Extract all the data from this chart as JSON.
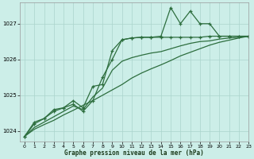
{
  "title": "Graphe pression niveau de la mer (hPa)",
  "bg_color": "#cceee8",
  "grid_color": "#aad4cc",
  "line_color": "#2d6e3e",
  "xlim": [
    -0.5,
    23
  ],
  "ylim": [
    1023.7,
    1027.6
  ],
  "yticks": [
    1024,
    1025,
    1026,
    1027
  ],
  "xticks": [
    0,
    1,
    2,
    3,
    4,
    5,
    6,
    7,
    8,
    9,
    10,
    11,
    12,
    13,
    14,
    15,
    16,
    17,
    18,
    19,
    20,
    21,
    22,
    23
  ],
  "line1_x": [
    0,
    1,
    2,
    3,
    4,
    5,
    6,
    7,
    8,
    9,
    10,
    11,
    12,
    13,
    14,
    15,
    16,
    17,
    18,
    19,
    20,
    21,
    22,
    23
  ],
  "line1_y": [
    1023.85,
    1024.25,
    1024.35,
    1024.6,
    1024.65,
    1024.75,
    1024.55,
    1024.85,
    1025.5,
    1026.0,
    1026.55,
    1026.6,
    1026.62,
    1026.62,
    1026.62,
    1026.62,
    1026.62,
    1026.62,
    1026.62,
    1026.65,
    1026.65,
    1026.65,
    1026.65,
    1026.65
  ],
  "line2_x": [
    0,
    1,
    2,
    3,
    4,
    5,
    6,
    7,
    8,
    9,
    10,
    11,
    12,
    13,
    14,
    15,
    16,
    17,
    18,
    19,
    20,
    21,
    22,
    23
  ],
  "line2_y": [
    1023.85,
    1024.2,
    1024.35,
    1024.55,
    1024.65,
    1024.85,
    1024.65,
    1025.25,
    1025.3,
    1026.25,
    1026.55,
    1026.6,
    1026.62,
    1026.62,
    1026.65,
    1027.45,
    1027.0,
    1027.35,
    1027.0,
    1027.0,
    1026.65,
    1026.65,
    1026.65,
    1026.65
  ],
  "line3_x": [
    0,
    1,
    2,
    3,
    4,
    5,
    6,
    7,
    8,
    9,
    10,
    11,
    12,
    13,
    14,
    15,
    16,
    17,
    18,
    19,
    20,
    21,
    22,
    23
  ],
  "line3_y": [
    1023.85,
    1024.1,
    1024.25,
    1024.4,
    1024.55,
    1024.7,
    1024.6,
    1024.95,
    1025.2,
    1025.7,
    1025.95,
    1026.05,
    1026.12,
    1026.18,
    1026.22,
    1026.3,
    1026.38,
    1026.45,
    1026.5,
    1026.52,
    1026.57,
    1026.6,
    1026.62,
    1026.65
  ],
  "line4_x": [
    0,
    1,
    2,
    3,
    4,
    5,
    6,
    7,
    8,
    9,
    10,
    11,
    12,
    13,
    14,
    15,
    16,
    17,
    18,
    19,
    20,
    21,
    22,
    23
  ],
  "line4_y": [
    1023.85,
    1024.05,
    1024.18,
    1024.3,
    1024.45,
    1024.58,
    1024.72,
    1024.85,
    1025.0,
    1025.15,
    1025.3,
    1025.48,
    1025.62,
    1025.74,
    1025.85,
    1025.97,
    1026.1,
    1026.2,
    1026.3,
    1026.4,
    1026.48,
    1026.54,
    1026.6,
    1026.65
  ]
}
